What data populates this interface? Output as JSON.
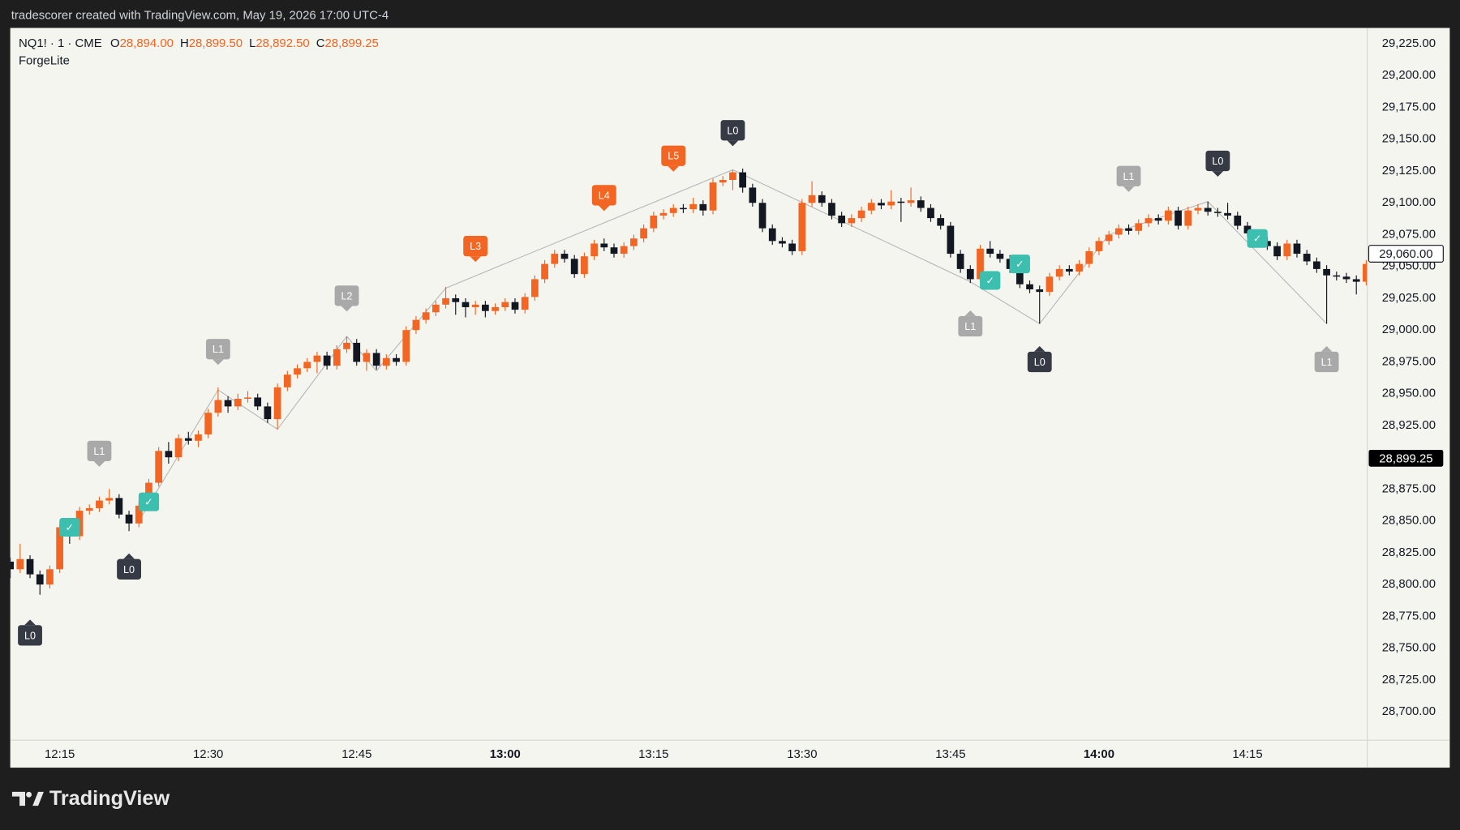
{
  "header": {
    "caption": "tradescorer created with TradingView.com, May 19, 2026 17:00 UTC-4"
  },
  "footer": {
    "brand": "TradingView"
  },
  "chart_data": {
    "type": "candlestick",
    "symbol": "NQ1! · 1 · CME",
    "indicator": "ForgeLite",
    "ohlc": [
      {
        "key": "O",
        "value": 28894,
        "label": "28,894.00"
      },
      {
        "key": "H",
        "value": 28899.5,
        "label": "28,899.50"
      },
      {
        "key": "L",
        "value": 28892.5,
        "label": "28,892.50"
      },
      {
        "key": "C",
        "value": 28899.25,
        "label": "28,899.25"
      }
    ],
    "up_color": "#f26522",
    "down_color": "#131722",
    "grid": false,
    "x": [
      "12:10",
      "12:11",
      "12:12",
      "12:13",
      "12:14",
      "12:15",
      "12:16",
      "12:17",
      "12:18",
      "12:19",
      "12:20",
      "12:21",
      "12:22",
      "12:23",
      "12:24",
      "12:25",
      "12:26",
      "12:27",
      "12:28",
      "12:29",
      "12:30",
      "12:31",
      "12:32",
      "12:33",
      "12:34",
      "12:35",
      "12:36",
      "12:37",
      "12:38",
      "12:39",
      "12:40",
      "12:41",
      "12:42",
      "12:43",
      "12:44",
      "12:45",
      "12:46",
      "12:47",
      "12:48",
      "12:49",
      "12:50",
      "12:51",
      "12:52",
      "12:53",
      "12:54",
      "12:55",
      "12:56",
      "12:57",
      "12:58",
      "12:59",
      "13:00",
      "13:01",
      "13:02",
      "13:03",
      "13:04",
      "13:05",
      "13:06",
      "13:07",
      "13:08",
      "13:09",
      "13:10",
      "13:11",
      "13:12",
      "13:13",
      "13:14",
      "13:15",
      "13:16",
      "13:17",
      "13:18",
      "13:19",
      "13:20",
      "13:21",
      "13:22",
      "13:23",
      "13:24",
      "13:25",
      "13:26",
      "13:27",
      "13:28",
      "13:29",
      "13:30",
      "13:31",
      "13:32",
      "13:33",
      "13:34",
      "13:35",
      "13:36",
      "13:37",
      "13:38",
      "13:39",
      "13:40",
      "13:41",
      "13:42",
      "13:43",
      "13:44",
      "13:45",
      "13:46",
      "13:47",
      "13:48",
      "13:49",
      "13:50",
      "13:51",
      "13:52",
      "13:53",
      "13:54",
      "13:55",
      "13:56",
      "13:57",
      "13:58",
      "13:59",
      "14:00",
      "14:01",
      "14:02",
      "14:03",
      "14:04",
      "14:05",
      "14:06",
      "14:07",
      "14:08",
      "14:09",
      "14:10",
      "14:11",
      "14:12",
      "14:13",
      "14:14",
      "14:15",
      "14:16",
      "14:17",
      "14:18",
      "14:19",
      "14:20",
      "14:21",
      "14:22",
      "14:23",
      "14:24",
      "14:25",
      "14:26",
      "14:27"
    ],
    "candles": [
      [
        28818,
        28821,
        28805,
        28812
      ],
      [
        28812,
        28832,
        28809,
        28820
      ],
      [
        28820,
        28823,
        28805,
        28808
      ],
      [
        28808,
        28811,
        28792,
        28800
      ],
      [
        28800,
        28815,
        28797,
        28812
      ],
      [
        28812,
        28848,
        28809,
        28845
      ],
      [
        28845,
        28848,
        28832,
        28838
      ],
      [
        28838,
        28861,
        28835,
        28858
      ],
      [
        28858,
        28863,
        28855,
        28860
      ],
      [
        28860,
        28869,
        28857,
        28866
      ],
      [
        28866,
        28875,
        28863,
        28868
      ],
      [
        28868,
        28871,
        28852,
        28855
      ],
      [
        28855,
        28858,
        28842,
        28848
      ],
      [
        28848,
        28865,
        28845,
        28862
      ],
      [
        28862,
        28883,
        28859,
        28880
      ],
      [
        28880,
        28908,
        28877,
        28905
      ],
      [
        28905,
        28912,
        28895,
        28900
      ],
      [
        28900,
        28918,
        28897,
        28915
      ],
      [
        28915,
        28920,
        28910,
        28913
      ],
      [
        28913,
        28921,
        28908,
        28918
      ],
      [
        28918,
        28938,
        28915,
        28935
      ],
      [
        28935,
        28955,
        28932,
        28945
      ],
      [
        28945,
        28948,
        28935,
        28940
      ],
      [
        28940,
        28950,
        28937,
        28946
      ],
      [
        28946,
        28952,
        28943,
        28947
      ],
      [
        28947,
        28950,
        28937,
        28940
      ],
      [
        28940,
        28943,
        28927,
        28930
      ],
      [
        28930,
        28958,
        28922,
        28955
      ],
      [
        28955,
        28968,
        28952,
        28965
      ],
      [
        28965,
        28973,
        28962,
        28970
      ],
      [
        28970,
        28978,
        28967,
        28975
      ],
      [
        28975,
        28983,
        28966,
        28980
      ],
      [
        28980,
        28983,
        28969,
        28972
      ],
      [
        28972,
        28988,
        28969,
        28985
      ],
      [
        28985,
        28995,
        28982,
        28990
      ],
      [
        28990,
        28993,
        28972,
        28975
      ],
      [
        28975,
        28985,
        28968,
        28982
      ],
      [
        28982,
        28985,
        28969,
        28972
      ],
      [
        28972,
        28981,
        28969,
        28978
      ],
      [
        28978,
        28981,
        28972,
        28975
      ],
      [
        28975,
        29003,
        28972,
        29000
      ],
      [
        29000,
        29011,
        28997,
        29008
      ],
      [
        29008,
        29017,
        29005,
        29014
      ],
      [
        29014,
        29023,
        29011,
        29020
      ],
      [
        29020,
        29034,
        29017,
        29025
      ],
      [
        29025,
        29028,
        29012,
        29022
      ],
      [
        29022,
        29025,
        29010,
        29018
      ],
      [
        29018,
        29023,
        29012,
        29020
      ],
      [
        29020,
        29023,
        29010,
        29015
      ],
      [
        29015,
        29021,
        29012,
        29018
      ],
      [
        29018,
        29025,
        29015,
        29022
      ],
      [
        29022,
        29025,
        29013,
        29016
      ],
      [
        29016,
        29029,
        29013,
        29026
      ],
      [
        29026,
        29043,
        29023,
        29040
      ],
      [
        29040,
        29055,
        29037,
        29052
      ],
      [
        29052,
        29063,
        29049,
        29060
      ],
      [
        29060,
        29063,
        29053,
        29056
      ],
      [
        29056,
        29059,
        29041,
        29044
      ],
      [
        29044,
        29061,
        29041,
        29058
      ],
      [
        29058,
        29071,
        29055,
        29068
      ],
      [
        29068,
        29072,
        29062,
        29065
      ],
      [
        29065,
        29068,
        29057,
        29060
      ],
      [
        29060,
        29069,
        29057,
        29066
      ],
      [
        29066,
        29075,
        29063,
        29072
      ],
      [
        29072,
        29083,
        29069,
        29080
      ],
      [
        29080,
        29093,
        29077,
        29090
      ],
      [
        29090,
        29095,
        29087,
        29092
      ],
      [
        29092,
        29099,
        29089,
        29096
      ],
      [
        29096,
        29099,
        29092,
        29095
      ],
      [
        29095,
        29104,
        29092,
        29099
      ],
      [
        29099,
        29102,
        29090,
        29094
      ],
      [
        29094,
        29119,
        29091,
        29116
      ],
      [
        29116,
        29121,
        29113,
        29118
      ],
      [
        29118,
        29126,
        29110,
        29124
      ],
      [
        29124,
        29127,
        29108,
        29112
      ],
      [
        29112,
        29115,
        29097,
        29100
      ],
      [
        29100,
        29103,
        29077,
        29080
      ],
      [
        29080,
        29083,
        29067,
        29070
      ],
      [
        29070,
        29073,
        29065,
        29068
      ],
      [
        29068,
        29071,
        29059,
        29062
      ],
      [
        29062,
        29103,
        29059,
        29100
      ],
      [
        29100,
        29117,
        29097,
        29106
      ],
      [
        29106,
        29109,
        29097,
        29100
      ],
      [
        29100,
        29103,
        29087,
        29090
      ],
      [
        29090,
        29093,
        29081,
        29084
      ],
      [
        29084,
        29091,
        29081,
        29088
      ],
      [
        29088,
        29097,
        29085,
        29094
      ],
      [
        29094,
        29103,
        29091,
        29100
      ],
      [
        29100,
        29103,
        29095,
        29098
      ],
      [
        29098,
        29110,
        29095,
        29101
      ],
      [
        29101,
        29104,
        29085,
        29100
      ],
      [
        29100,
        29112,
        29097,
        29102
      ],
      [
        29102,
        29105,
        29093,
        29096
      ],
      [
        29096,
        29099,
        29085,
        29088
      ],
      [
        29088,
        29091,
        29079,
        29082
      ],
      [
        29082,
        29085,
        29057,
        29060
      ],
      [
        29060,
        29063,
        29045,
        29048
      ],
      [
        29048,
        29051,
        29037,
        29040
      ],
      [
        29040,
        29067,
        29037,
        29064
      ],
      [
        29064,
        29070,
        29057,
        29060
      ],
      [
        29060,
        29063,
        29053,
        29056
      ],
      [
        29056,
        29059,
        29045,
        29048
      ],
      [
        29048,
        29051,
        29033,
        29036
      ],
      [
        29036,
        29039,
        29029,
        29032
      ],
      [
        29032,
        29035,
        29005,
        29030
      ],
      [
        29030,
        29045,
        29027,
        29042
      ],
      [
        29042,
        29051,
        29039,
        29048
      ],
      [
        29048,
        29051,
        29043,
        29046
      ],
      [
        29046,
        29055,
        29043,
        29052
      ],
      [
        29052,
        29065,
        29049,
        29062
      ],
      [
        29062,
        29073,
        29059,
        29070
      ],
      [
        29070,
        29078,
        29067,
        29075
      ],
      [
        29075,
        29083,
        29072,
        29080
      ],
      [
        29080,
        29083,
        29075,
        29078
      ],
      [
        29078,
        29087,
        29075,
        29084
      ],
      [
        29084,
        29091,
        29081,
        29088
      ],
      [
        29088,
        29091,
        29083,
        29086
      ],
      [
        29086,
        29097,
        29083,
        29094
      ],
      [
        29094,
        29097,
        29079,
        29082
      ],
      [
        29082,
        29097,
        29079,
        29094
      ],
      [
        29094,
        29099,
        29091,
        29096
      ],
      [
        29096,
        29101,
        29090,
        29093
      ],
      [
        29093,
        29096,
        29089,
        29092
      ],
      [
        29092,
        29100,
        29087,
        29090
      ],
      [
        29090,
        29093,
        29079,
        29082
      ],
      [
        29082,
        29085,
        29073,
        29076
      ],
      [
        29076,
        29079,
        29067,
        29070
      ],
      [
        29070,
        29073,
        29063,
        29066
      ],
      [
        29066,
        29069,
        29055,
        29058
      ],
      [
        29058,
        29071,
        29055,
        29068
      ],
      [
        29068,
        29071,
        29057,
        29060
      ],
      [
        29060,
        29063,
        29051,
        29054
      ],
      [
        29054,
        29057,
        29045,
        29048
      ],
      [
        29048,
        29051,
        29005,
        29043
      ],
      [
        29043,
        29046,
        29039,
        29042
      ],
      [
        29042,
        29045,
        29037,
        29040
      ],
      [
        29040,
        29043,
        29028,
        29038
      ],
      [
        29038,
        29055,
        29035,
        29052
      ]
    ],
    "ylim": [
      28678,
      29237.5
    ],
    "yticks": [
      {
        "value": 29225,
        "label": "29,225.00"
      },
      {
        "value": 29200,
        "label": "29,200.00"
      },
      {
        "value": 29175,
        "label": "29,175.00"
      },
      {
        "value": 29150,
        "label": "29,150.00"
      },
      {
        "value": 29125,
        "label": "29,125.00"
      },
      {
        "value": 29100,
        "label": "29,100.00"
      },
      {
        "value": 29075,
        "label": "29,075.00"
      },
      {
        "value": 29050,
        "label": "29,050.00"
      },
      {
        "value": 29025,
        "label": "29,025.00"
      },
      {
        "value": 29000,
        "label": "29,000.00"
      },
      {
        "value": 28975,
        "label": "28,975.00"
      },
      {
        "value": 28950,
        "label": "28,950.00"
      },
      {
        "value": 28925,
        "label": "28,925.00"
      },
      {
        "value": 28900,
        "label": "28,900.00"
      },
      {
        "value": 28875,
        "label": "28,875.00"
      },
      {
        "value": 28850,
        "label": "28,850.00"
      },
      {
        "value": 28825,
        "label": "28,825.00"
      },
      {
        "value": 28800,
        "label": "28,800.00"
      },
      {
        "value": 28775,
        "label": "28,775.00"
      },
      {
        "value": 28750,
        "label": "28,750.00"
      },
      {
        "value": 28725,
        "label": "28,725.00"
      },
      {
        "value": 28700,
        "label": "28,700.00"
      }
    ],
    "xticks": [
      "12:15",
      "12:30",
      "12:45",
      "13:00",
      "13:15",
      "13:30",
      "13:45",
      "14:00",
      "14:15"
    ],
    "xticks_bold": [
      3,
      7
    ],
    "price_tags": [
      {
        "value": 29060,
        "label": "29,060.00",
        "style": "outline"
      },
      {
        "value": 28899.25,
        "label": "28,899.25",
        "style": "solid"
      }
    ],
    "zigzag": {
      "x": [
        "12:23",
        "12:31",
        "12:37",
        "12:44",
        "12:47",
        "12:54",
        "13:23",
        "13:47",
        "13:54",
        "14:01",
        "14:11",
        "14:23"
      ],
      "y": [
        28850,
        28953,
        28922,
        28995,
        28968,
        29033,
        29126,
        29038,
        29005,
        29075,
        29101,
        29005
      ]
    },
    "markers": [
      {
        "label": "L0",
        "x": "12:12",
        "y": 28760,
        "kind": "dark",
        "pointer": "up"
      },
      {
        "label": "L1",
        "x": "12:19",
        "y": 28905,
        "kind": "gray",
        "pointer": "down"
      },
      {
        "label": "L0",
        "x": "12:22",
        "y": 28812,
        "kind": "dark",
        "pointer": "up"
      },
      {
        "label": "L1",
        "x": "12:31",
        "y": 28985,
        "kind": "gray",
        "pointer": "down"
      },
      {
        "label": "L2",
        "x": "12:44",
        "y": 29027,
        "kind": "gray",
        "pointer": "down"
      },
      {
        "label": "L3",
        "x": "12:57",
        "y": 29066,
        "kind": "orange",
        "pointer": "down"
      },
      {
        "label": "L4",
        "x": "13:10",
        "y": 29106,
        "kind": "orange",
        "pointer": "down"
      },
      {
        "label": "L5",
        "x": "13:17",
        "y": 29137,
        "kind": "orange",
        "pointer": "down"
      },
      {
        "label": "L0",
        "x": "13:23",
        "y": 29157,
        "kind": "dark",
        "pointer": "down"
      },
      {
        "label": "L1",
        "x": "13:47",
        "y": 29003,
        "kind": "gray",
        "pointer": "up"
      },
      {
        "label": "L0",
        "x": "13:54",
        "y": 28975,
        "kind": "dark",
        "pointer": "up"
      },
      {
        "label": "L1",
        "x": "14:03",
        "y": 29121,
        "kind": "gray",
        "pointer": "down"
      },
      {
        "label": "L0",
        "x": "14:12",
        "y": 29133,
        "kind": "dark",
        "pointer": "down"
      },
      {
        "label": "L1",
        "x": "14:23",
        "y": 28975,
        "kind": "gray",
        "pointer": "up"
      }
    ],
    "signals": [
      {
        "label": "✓",
        "x": "12:16",
        "y": 28845
      },
      {
        "label": "✓",
        "x": "12:24",
        "y": 28865
      },
      {
        "label": "✓",
        "x": "13:49",
        "y": 29039
      },
      {
        "label": "✓",
        "x": "13:52",
        "y": 29052
      },
      {
        "label": "✓",
        "x": "14:16",
        "y": 29072
      }
    ]
  }
}
